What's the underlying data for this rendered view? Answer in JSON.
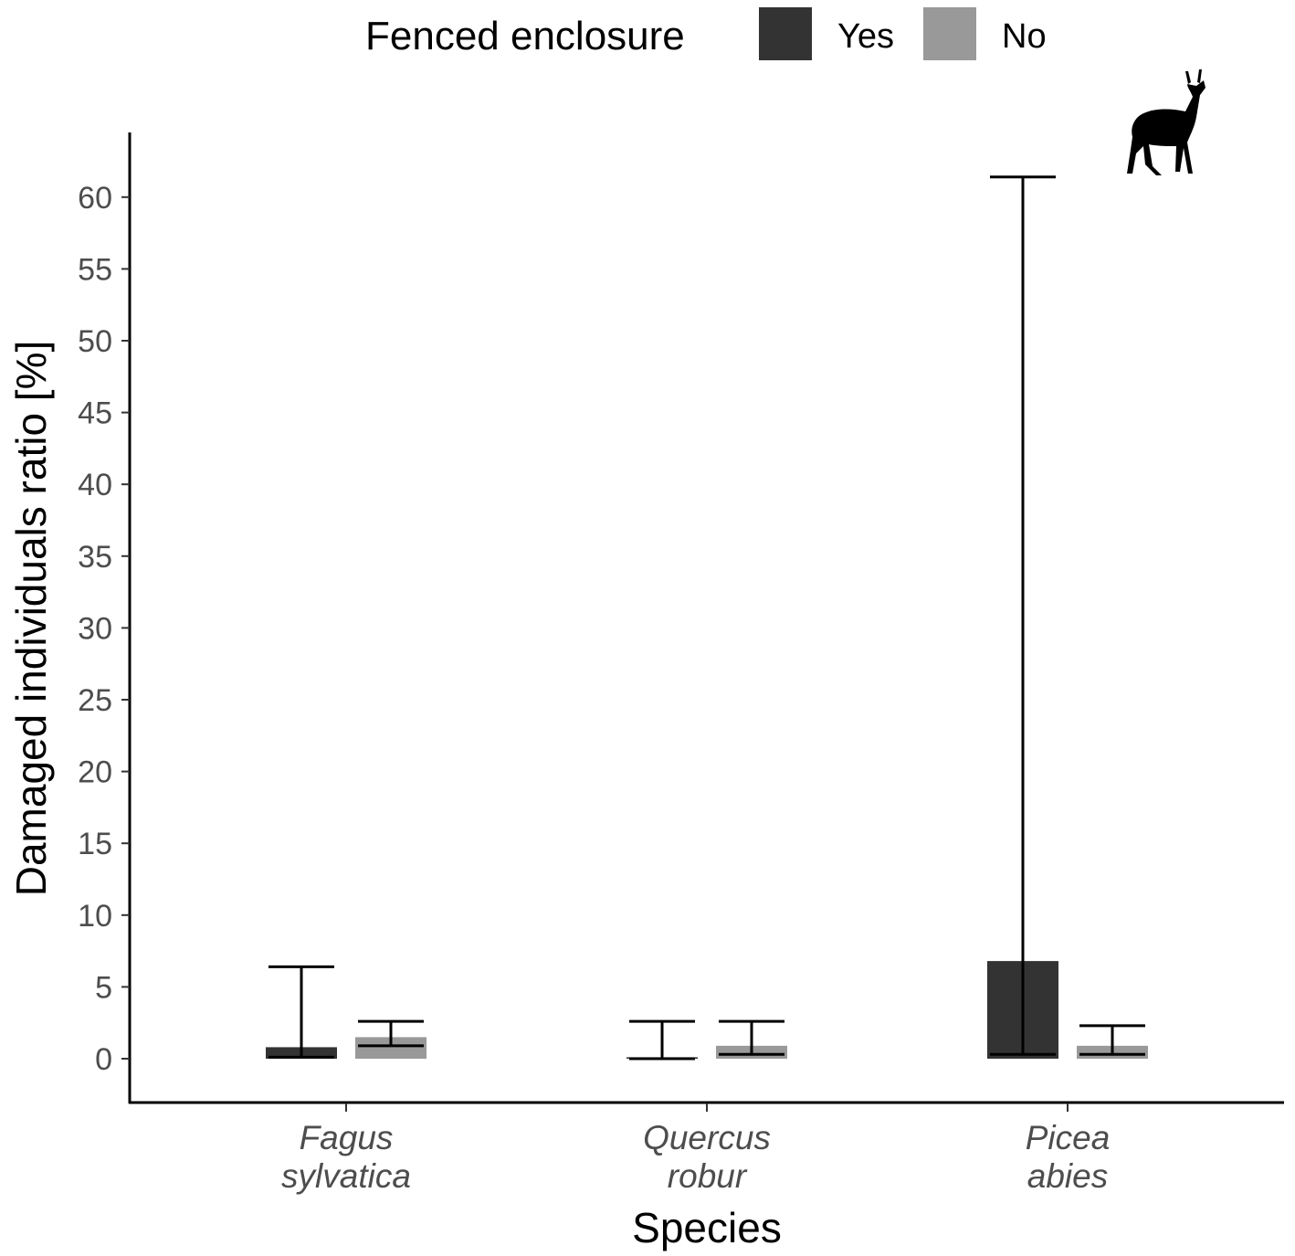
{
  "chart_data": {
    "type": "bar",
    "categories": [
      "Fagus sylvatica",
      "Quercus robur",
      "Picea abies"
    ],
    "category_lines": [
      [
        "Fagus",
        "sylvatica"
      ],
      [
        "Quercus",
        "robur"
      ],
      [
        "Picea",
        "abies"
      ]
    ],
    "series": [
      {
        "name": "Yes",
        "color": "#333333",
        "values": [
          0.8,
          0.1,
          6.8
        ],
        "error_low": [
          0.1,
          0.0,
          0.3
        ],
        "error_high": [
          6.4,
          2.6,
          61.4
        ]
      },
      {
        "name": "No",
        "color": "#999999",
        "values": [
          1.5,
          0.9,
          0.9
        ],
        "error_low": [
          0.9,
          0.3,
          0.3
        ],
        "error_high": [
          2.6,
          2.6,
          2.3
        ]
      }
    ],
    "legend_title": "Fenced enclosure",
    "legend_position": "top",
    "xlabel": "Species",
    "ylabel": "Damaged individuals ratio [%]",
    "yticks": [
      0,
      5,
      10,
      15,
      20,
      25,
      30,
      35,
      40,
      45,
      50,
      55,
      60
    ],
    "ylim": [
      -3,
      64.5
    ],
    "grid": false,
    "icon": "deer-silhouette-icon"
  }
}
